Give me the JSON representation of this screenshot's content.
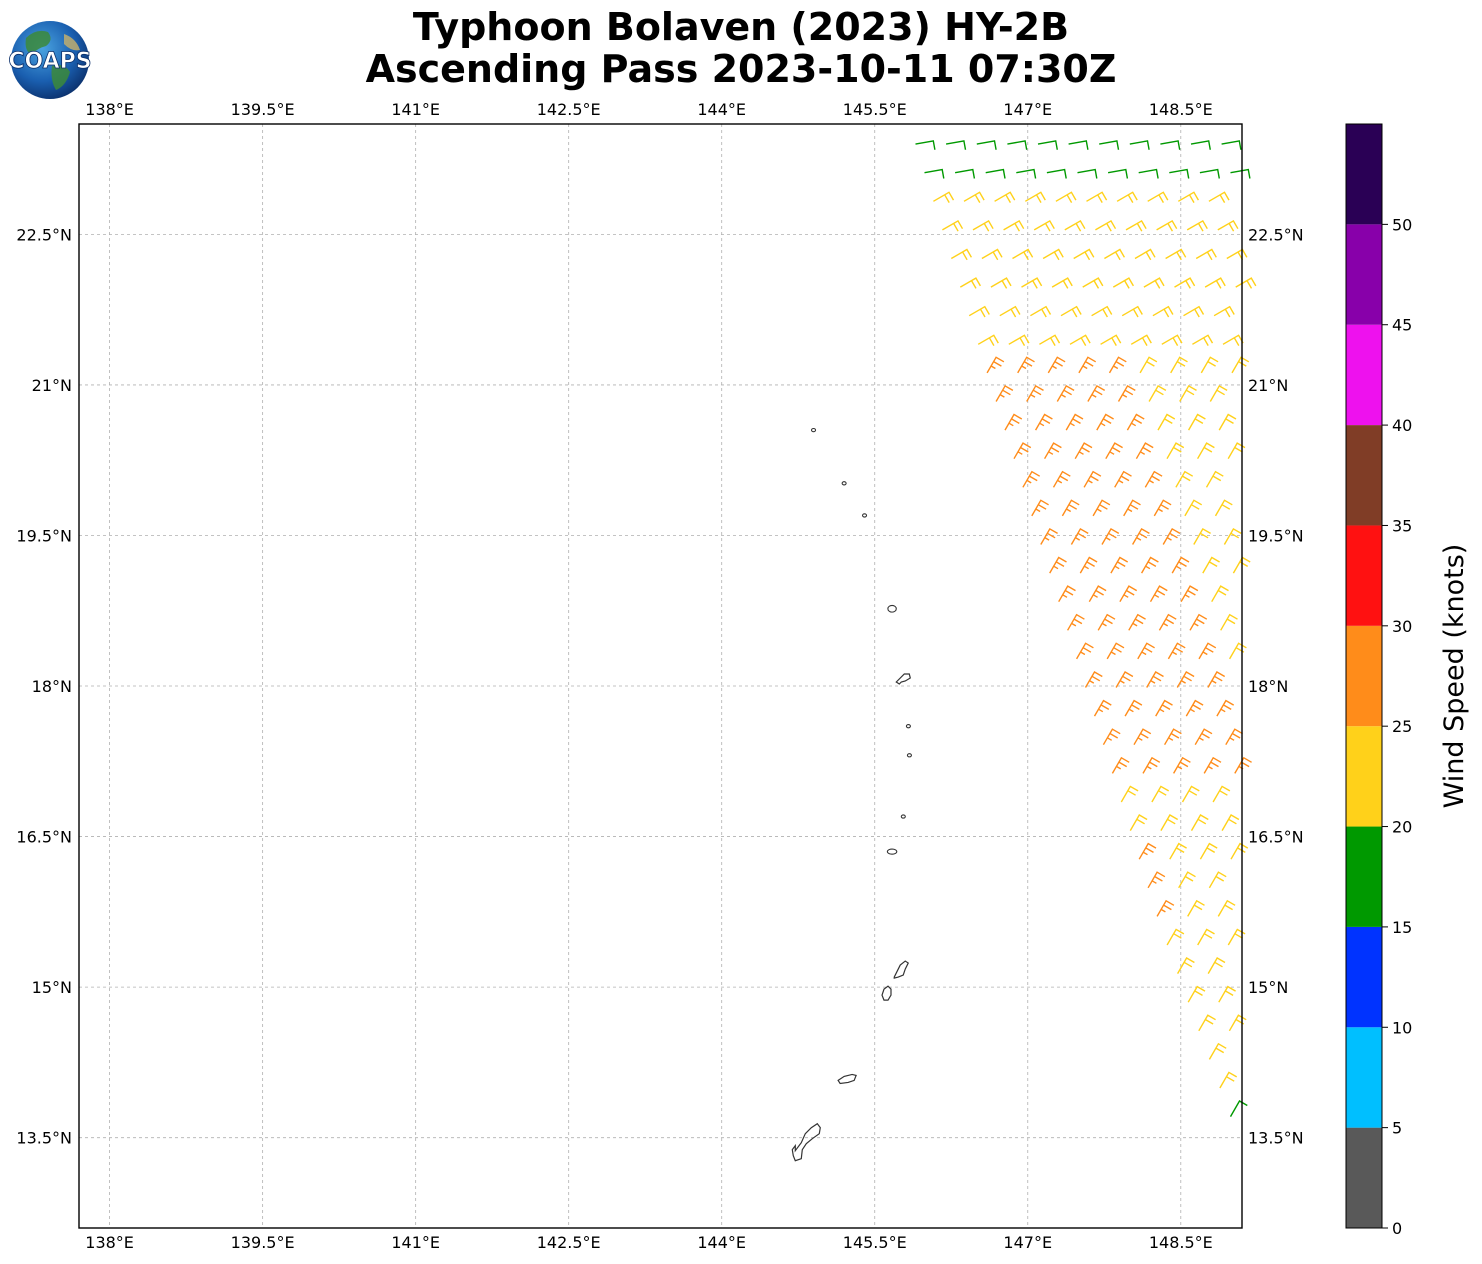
{
  "title": {
    "line1": "Typhoon Bolaven (2023) HY-2B",
    "line2": "Ascending Pass 2023-10-11 07:30Z"
  },
  "logo": {
    "text": "COAPS",
    "icon": "globe-logo-icon"
  },
  "axes": {
    "lon_labels": [
      "138°E",
      "139.5°E",
      "141°E",
      "142.5°E",
      "144°E",
      "145.5°E",
      "147°E",
      "148.5°E"
    ],
    "lat_labels": [
      "22.5°N",
      "21°N",
      "19.5°N",
      "18°N",
      "16.5°N",
      "15°N",
      "13.5°N"
    ],
    "lon_ticks": [
      138,
      139.5,
      141,
      142.5,
      144,
      145.5,
      147,
      148.5
    ],
    "lat_ticks": [
      22.5,
      21,
      19.5,
      18,
      16.5,
      15,
      13.5
    ],
    "lon_range": [
      137.7,
      149.1
    ],
    "lat_range": [
      12.6,
      23.6
    ],
    "grid": true
  },
  "colorbar": {
    "label": "Wind Speed (knots)",
    "bins": [
      {
        "min": 0,
        "max": 5,
        "color": "#595959"
      },
      {
        "min": 5,
        "max": 10,
        "color": "#00bfff"
      },
      {
        "min": 10,
        "max": 15,
        "color": "#0033ff"
      },
      {
        "min": 15,
        "max": 20,
        "color": "#009900"
      },
      {
        "min": 20,
        "max": 25,
        "color": "#ffd11a"
      },
      {
        "min": 25,
        "max": 30,
        "color": "#ff8c1a"
      },
      {
        "min": 30,
        "max": 35,
        "color": "#ff1111"
      },
      {
        "min": 35,
        "max": 40,
        "color": "#803d26"
      },
      {
        "min": 40,
        "max": 45,
        "color": "#ee11ee"
      },
      {
        "min": 45,
        "max": 50,
        "color": "#8800aa"
      },
      {
        "min": 50,
        "max": 55,
        "color": "#2a0055"
      }
    ],
    "tick_labels": [
      "0",
      "5",
      "10",
      "15",
      "20",
      "25",
      "30",
      "35",
      "40",
      "45",
      "50"
    ]
  },
  "swath": {
    "description_units": "knots",
    "edge_top": [
      [
        145.9,
        23.4
      ],
      [
        149.1,
        23.4
      ]
    ],
    "edge_left": [
      [
        145.9,
        23.4
      ],
      [
        148.3,
        15.6
      ],
      [
        149.1,
        13.4
      ]
    ],
    "regions": [
      {
        "speed": 17,
        "lat_min": 22.85,
        "lat_max": 23.5
      },
      {
        "speed": 22,
        "lat_min": 21.1,
        "lat_max": 22.85
      },
      {
        "speed": 27,
        "lat_min": 16.8,
        "lat_max": 21.2,
        "lon_max_offset": 1.2
      },
      {
        "speed": 23,
        "lat_min": 13.4,
        "lat_max": 17.0
      }
    ]
  },
  "islands": [
    {
      "name": "Farallon de Pajaros",
      "lon": 144.9,
      "lat": 20.55
    },
    {
      "name": "Maug",
      "lon": 145.2,
      "lat": 20.02
    },
    {
      "name": "Asuncion",
      "lon": 145.4,
      "lat": 19.7
    },
    {
      "name": "Agrihan",
      "lon": 145.67,
      "lat": 18.77
    },
    {
      "name": "Pagan",
      "lon": 145.77,
      "lat": 18.12
    },
    {
      "name": "Alamagan",
      "lon": 145.83,
      "lat": 17.6
    },
    {
      "name": "Guguan",
      "lon": 145.84,
      "lat": 17.31
    },
    {
      "name": "Sarigan",
      "lon": 145.78,
      "lat": 16.7
    },
    {
      "name": "Anatahan",
      "lon": 145.67,
      "lat": 16.35
    },
    {
      "name": "Saipan",
      "lon": 145.75,
      "lat": 15.18
    },
    {
      "name": "Tinian",
      "lon": 145.63,
      "lat": 15.0
    },
    {
      "name": "Rota",
      "lon": 145.2,
      "lat": 14.15
    },
    {
      "name": "Guam",
      "lon": 144.78,
      "lat": 13.45
    }
  ]
}
